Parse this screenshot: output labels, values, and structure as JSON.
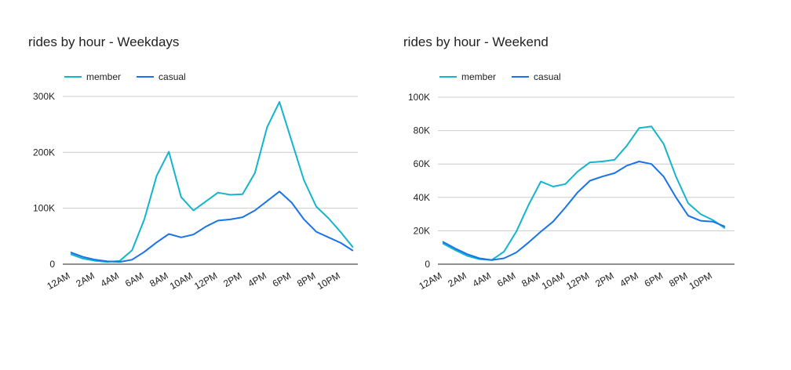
{
  "colors": {
    "member": "#12b5cb",
    "casual": "#1a73e8",
    "grid": "#cccccc",
    "axis": "#222222",
    "text": "#222222"
  },
  "chart_data": [
    {
      "type": "line",
      "title": "rides by hour - Weekdays",
      "x": [
        "12AM",
        "1AM",
        "2AM",
        "3AM",
        "4AM",
        "5AM",
        "6AM",
        "7AM",
        "8AM",
        "9AM",
        "10AM",
        "11AM",
        "12PM",
        "1PM",
        "2PM",
        "3PM",
        "4PM",
        "5PM",
        "6PM",
        "7PM",
        "8PM",
        "9PM",
        "10PM",
        "11PM"
      ],
      "tick_labels": [
        "12AM",
        "2AM",
        "4AM",
        "6AM",
        "8AM",
        "10AM",
        "12PM",
        "2PM",
        "4PM",
        "6PM",
        "8PM",
        "10PM"
      ],
      "ylim": [
        0,
        300000
      ],
      "yticks": [
        0,
        100000,
        200000,
        300000
      ],
      "ytick_labels": [
        "0",
        "100K",
        "200K",
        "300K"
      ],
      "legend": "top-left",
      "grid": true,
      "series": [
        {
          "name": "member",
          "color": "#12b5cb",
          "values": [
            18000,
            10000,
            6000,
            4000,
            6000,
            25000,
            80000,
            158000,
            201000,
            120000,
            96000,
            112000,
            128000,
            124000,
            125000,
            163000,
            245000,
            290000,
            220000,
            150000,
            103000,
            82000,
            57000,
            30000
          ]
        },
        {
          "name": "casual",
          "color": "#1a73e8",
          "values": [
            21000,
            13000,
            8000,
            5000,
            4000,
            8000,
            22000,
            39000,
            54000,
            48000,
            53000,
            67000,
            78000,
            80000,
            84000,
            96000,
            113000,
            130000,
            110000,
            80000,
            58000,
            48000,
            38000,
            24000
          ]
        }
      ]
    },
    {
      "type": "line",
      "title": "rides by hour - Weekend",
      "x": [
        "12AM",
        "1AM",
        "2AM",
        "3AM",
        "4AM",
        "5AM",
        "6AM",
        "7AM",
        "8AM",
        "9AM",
        "10AM",
        "11AM",
        "12PM",
        "1PM",
        "2PM",
        "3PM",
        "4PM",
        "5PM",
        "6PM",
        "7PM",
        "8PM",
        "9PM",
        "10PM",
        "11PM"
      ],
      "tick_labels": [
        "12AM",
        "2AM",
        "4AM",
        "6AM",
        "8AM",
        "10AM",
        "12PM",
        "2PM",
        "4PM",
        "6PM",
        "8PM",
        "10PM"
      ],
      "ylim": [
        0,
        100000
      ],
      "yticks": [
        0,
        20000,
        40000,
        60000,
        80000,
        100000
      ],
      "ytick_labels": [
        "0",
        "20K",
        "40K",
        "60K",
        "80K",
        "100K"
      ],
      "legend": "top-left",
      "grid": true,
      "series": [
        {
          "name": "member",
          "color": "#12b5cb",
          "values": [
            12500,
            8500,
            5000,
            3000,
            2500,
            7500,
            19500,
            35500,
            49500,
            46500,
            48000,
            55500,
            61000,
            61500,
            62500,
            71000,
            81500,
            82500,
            72000,
            52500,
            36500,
            30000,
            26500,
            21500
          ]
        },
        {
          "name": "casual",
          "color": "#1a73e8",
          "values": [
            13500,
            9500,
            6000,
            3500,
            2500,
            3500,
            7000,
            13000,
            19500,
            25500,
            34000,
            43000,
            50000,
            52500,
            54500,
            59000,
            61500,
            60000,
            52500,
            40000,
            29000,
            26000,
            25500,
            22500
          ]
        }
      ]
    }
  ]
}
